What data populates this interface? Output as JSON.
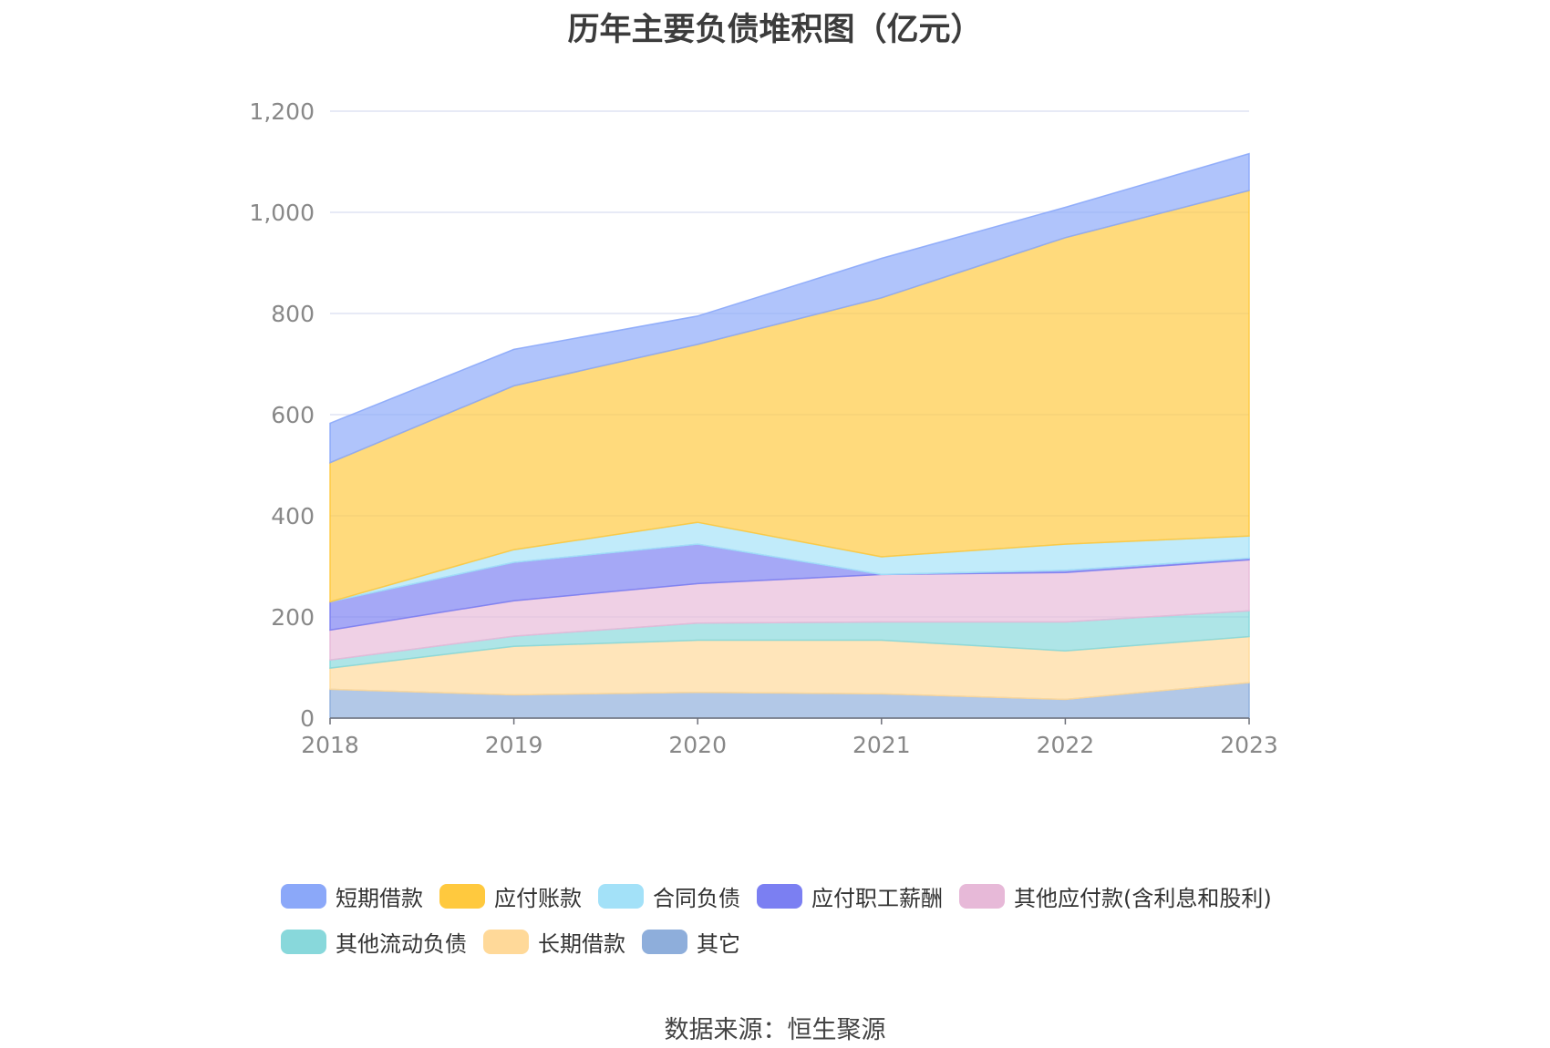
{
  "chart_data": {
    "type": "area",
    "stacked": true,
    "title": "历年主要负债堆积图（亿元）",
    "categories": [
      "2018",
      "2019",
      "2020",
      "2021",
      "2022",
      "2023"
    ],
    "ylim": [
      0,
      1200
    ],
    "yticks": [
      0,
      200,
      400,
      600,
      800,
      1000,
      1200
    ],
    "ytick_labels": [
      "0",
      "200",
      "400",
      "600",
      "800",
      "1,000",
      "1,200"
    ],
    "grid": true,
    "legend_position": "bottom",
    "series": [
      {
        "name": "其它",
        "color": "#8eaedb",
        "values": [
          57,
          46,
          51,
          48,
          37,
          70
        ]
      },
      {
        "name": "长期借款",
        "color": "#ffd999",
        "values": [
          42,
          96,
          103,
          106,
          96,
          91
        ]
      },
      {
        "name": "其他流动负债",
        "color": "#88d8db",
        "values": [
          16,
          20,
          34,
          36,
          57,
          51
        ]
      },
      {
        "name": "其他应付款(含利息和股利)",
        "color": "#e7b9d8",
        "values": [
          59,
          70,
          78,
          94,
          98,
          101
        ]
      },
      {
        "name": "应付职工薪酬",
        "color": "#7b7ff2",
        "values": [
          56,
          76,
          78,
          0,
          4,
          3
        ]
      },
      {
        "name": "合同负债",
        "color": "#a3e1f8",
        "values": [
          0,
          25,
          43,
          35,
          52,
          44
        ]
      },
      {
        "name": "应付账款",
        "color": "#ffc93e",
        "values": [
          275,
          324,
          352,
          512,
          606,
          683
        ]
      },
      {
        "name": "短期借款",
        "color": "#8ba8f9",
        "values": [
          78,
          72,
          56,
          78,
          60,
          73
        ]
      }
    ]
  },
  "legend_items": [
    {
      "label": "短期借款",
      "color": "#8ba8f9"
    },
    {
      "label": "应付账款",
      "color": "#ffc93e"
    },
    {
      "label": "合同负债",
      "color": "#a3e1f8"
    },
    {
      "label": "应付职工薪酬",
      "color": "#7b7ff2"
    },
    {
      "label": "其他应付款(含利息和股利)",
      "color": "#e7b9d8"
    },
    {
      "label": "其他流动负债",
      "color": "#88d8db"
    },
    {
      "label": "长期借款",
      "color": "#ffd999"
    },
    {
      "label": "其它",
      "color": "#8eaedb"
    }
  ],
  "source": "数据来源：恒生聚源"
}
